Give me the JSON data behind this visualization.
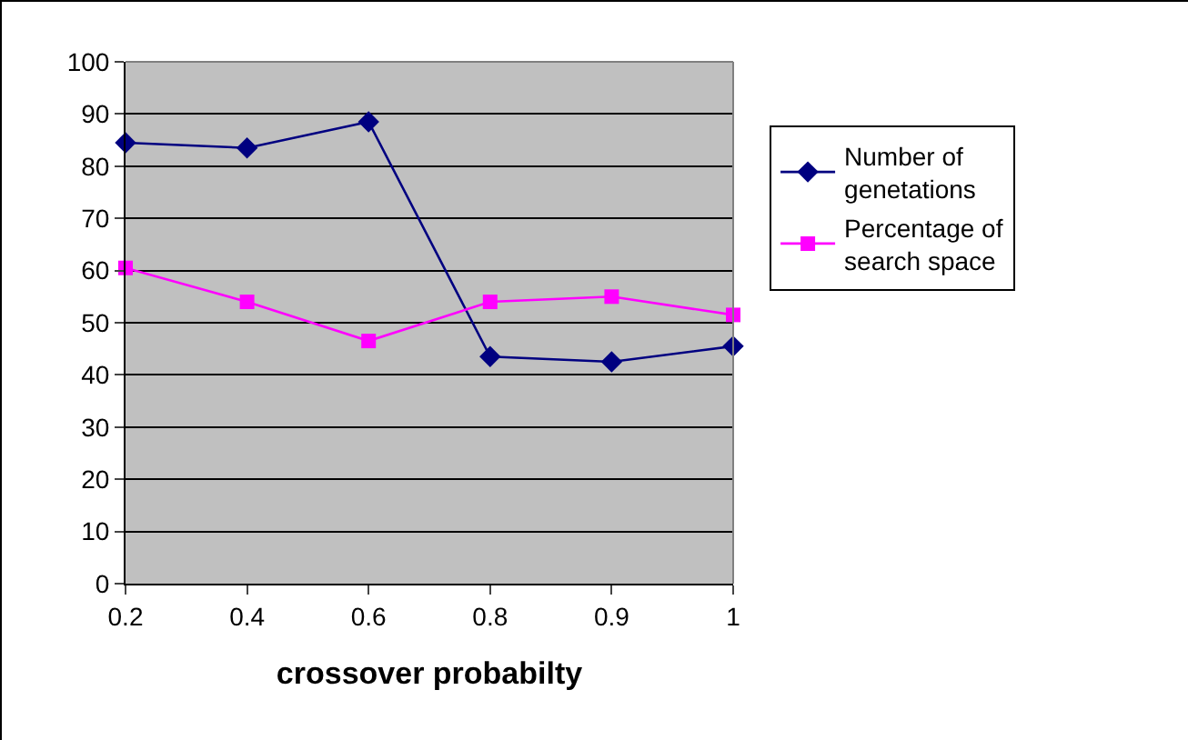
{
  "chart_data": {
    "type": "line",
    "xlabel": "crossover probabilty",
    "categories": [
      "0.2",
      "0.4",
      "0.6",
      "0.8",
      "0.9",
      "1"
    ],
    "series": [
      {
        "name": "Number of genetations",
        "color": "#000080",
        "marker": "diamond",
        "values": [
          84.5,
          83.5,
          88.5,
          43.5,
          42.5,
          45.5
        ]
      },
      {
        "name": "Percentage of search space",
        "color": "#ff00ff",
        "marker": "square",
        "values": [
          60.5,
          54,
          46.5,
          54,
          55,
          51.5
        ]
      }
    ],
    "ylim": [
      0,
      100
    ],
    "yticks": [
      0,
      10,
      20,
      30,
      40,
      50,
      60,
      70,
      80,
      90,
      100
    ],
    "grid": "y",
    "legend": "right",
    "line_style": "solid"
  }
}
